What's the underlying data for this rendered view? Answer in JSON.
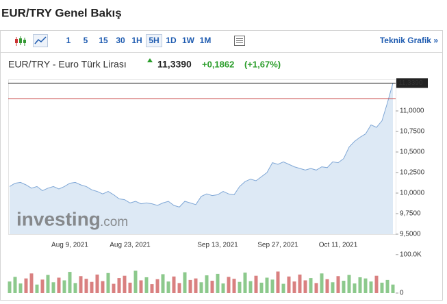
{
  "header": {
    "title": "EUR/TRY Genel Bakış"
  },
  "toolbar": {
    "intervals": [
      "1",
      "5",
      "15",
      "30",
      "1H",
      "5H",
      "1D",
      "1W",
      "1M"
    ],
    "selected_index": 5,
    "technical_link": "Teknik Grafik »"
  },
  "quote": {
    "name": "EUR/TRY - Euro Türk Lirası",
    "price": "11,3390",
    "change": "+0,1862",
    "change_percent": "(+1,67%)"
  },
  "chart_data": {
    "type": "area",
    "watermark": [
      "investing",
      ".com"
    ],
    "categories": [
      null,
      null,
      null,
      null,
      null,
      null,
      null,
      null,
      null,
      null,
      null,
      "Aug 9, 2021",
      null,
      null,
      null,
      null,
      null,
      null,
      null,
      null,
      null,
      null,
      "Aug 23, 2021",
      null,
      null,
      null,
      null,
      null,
      null,
      null,
      null,
      null,
      null,
      null,
      null,
      null,
      null,
      null,
      "Sep 13, 2021",
      null,
      null,
      null,
      null,
      null,
      null,
      null,
      null,
      null,
      null,
      "Sep 27, 2021",
      null,
      null,
      null,
      null,
      null,
      null,
      null,
      null,
      null,
      null,
      "Oct 11, 2021",
      null,
      null,
      null,
      null,
      null,
      null,
      null,
      null,
      null,
      null
    ],
    "series": [
      {
        "name": "EUR/TRY",
        "color": "#7fa7d6",
        "fill": "#dde9f5",
        "values": [
          10.08,
          10.12,
          10.13,
          10.1,
          10.06,
          10.08,
          10.03,
          10.06,
          10.08,
          10.05,
          10.08,
          10.12,
          10.13,
          10.1,
          10.08,
          10.04,
          10.02,
          9.99,
          10.02,
          9.98,
          9.93,
          9.92,
          9.88,
          9.9,
          9.87,
          9.88,
          9.87,
          9.85,
          9.88,
          9.9,
          9.85,
          9.83,
          9.9,
          9.88,
          9.86,
          9.96,
          9.99,
          9.97,
          9.98,
          10.02,
          9.99,
          9.98,
          10.08,
          10.14,
          10.17,
          10.15,
          10.2,
          10.25,
          10.37,
          10.35,
          10.38,
          10.35,
          10.32,
          10.3,
          10.28,
          10.3,
          10.28,
          10.32,
          10.31,
          10.38,
          10.37,
          10.42,
          10.56,
          10.63,
          10.68,
          10.72,
          10.83,
          10.8,
          10.88,
          11.1,
          11.339
        ]
      }
    ],
    "ylim": [
      9.5,
      11.375
    ],
    "yticks": [
      {
        "value": 9.5,
        "label": "9,5000"
      },
      {
        "value": 9.75,
        "label": "9,7500"
      },
      {
        "value": 10,
        "label": "10,0000"
      },
      {
        "value": 10.25,
        "label": "10,2500"
      },
      {
        "value": 10.5,
        "label": "10,5000"
      },
      {
        "value": 10.75,
        "label": "10,7500"
      },
      {
        "value": 11,
        "label": "11,0000"
      }
    ],
    "reference_lines": [
      {
        "value": 11.339,
        "label": "11,3390",
        "color": "#222222"
      },
      {
        "value": 11.15,
        "color": "#c94a4a"
      }
    ],
    "volume": {
      "up_color": "#8cc98c",
      "down_color": "#d98080",
      "ylim": [
        0,
        121000
      ],
      "yticks": [
        0,
        {
          "value": 100000,
          "label": "100.0K"
        }
      ],
      "values": [
        30000,
        42000,
        25000,
        38000,
        51000,
        22000,
        35000,
        47000,
        28000,
        40000,
        33000,
        55000,
        26000,
        44000,
        37000,
        29000,
        48000,
        31000,
        52000,
        24000,
        39000,
        45000,
        27000,
        58000,
        33000,
        41000,
        23000,
        36000,
        49000,
        30000,
        43000,
        26000,
        54000,
        34000,
        38000,
        28000,
        46000,
        32000,
        50000,
        25000,
        42000,
        37000,
        29000,
        53000,
        31000,
        45000,
        27000,
        40000,
        35000,
        56000,
        24000,
        43000,
        30000,
        48000,
        33000,
        39000,
        26000,
        51000,
        36000,
        28000,
        44000,
        32000,
        47000,
        25000,
        41000,
        38000,
        30000,
        45000,
        27000,
        34000,
        22000
      ]
    }
  }
}
